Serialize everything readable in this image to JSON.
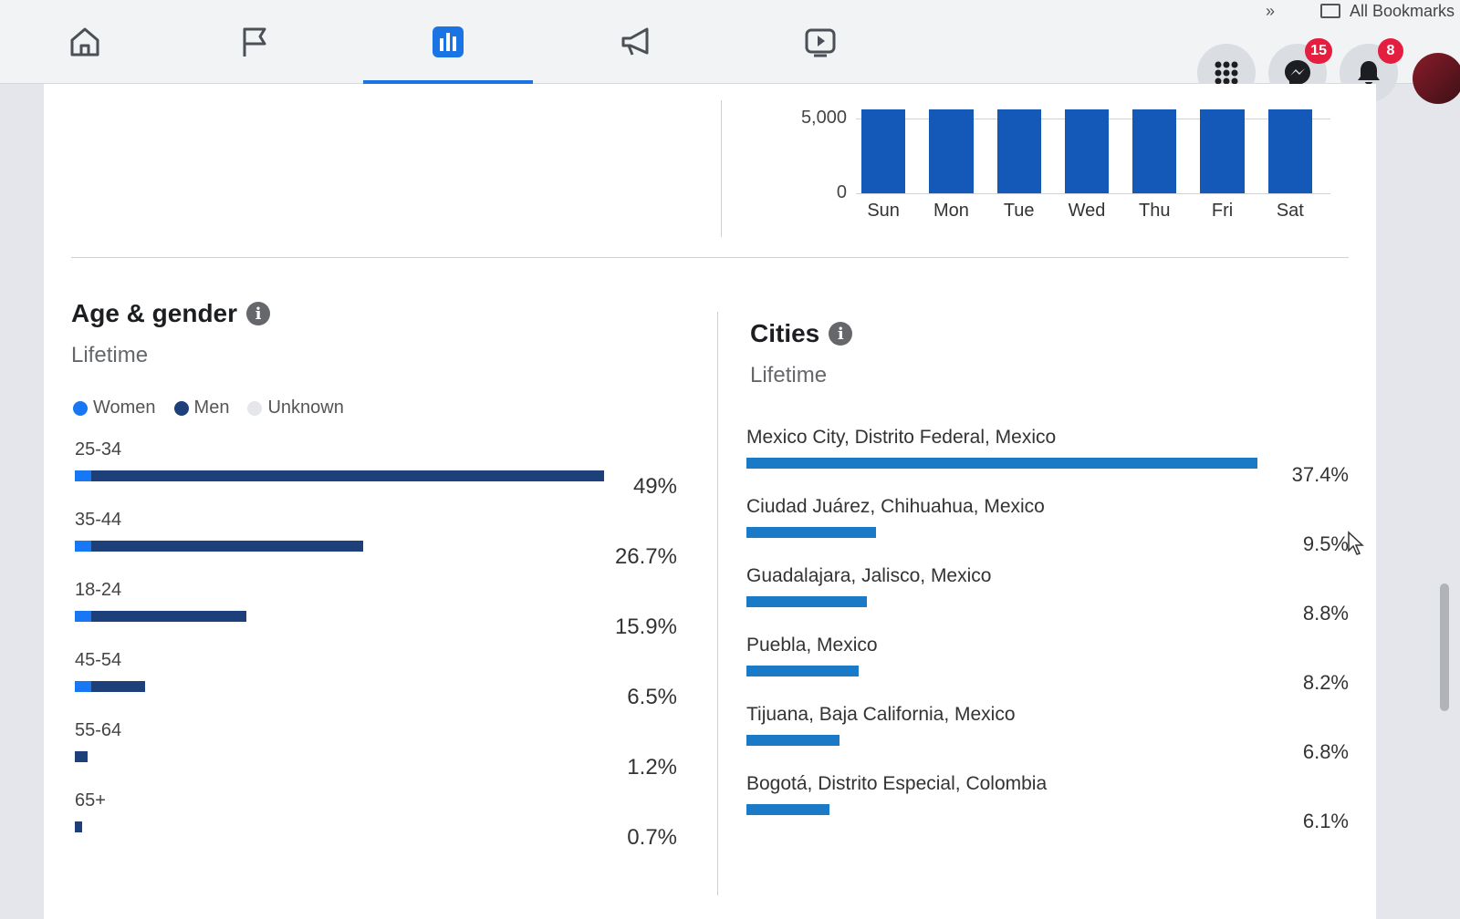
{
  "nav": {
    "tabs": [
      {
        "name": "home",
        "icon": "home-icon",
        "active": false
      },
      {
        "name": "pages",
        "icon": "flag-icon",
        "active": false
      },
      {
        "name": "insights",
        "icon": "bar-chart-icon",
        "active": true
      },
      {
        "name": "ads",
        "icon": "megaphone-icon",
        "active": false
      },
      {
        "name": "watch",
        "icon": "video-icon",
        "active": false
      }
    ],
    "bookmarks_label": "All Bookmarks",
    "bookmarks_chevron": "»",
    "messenger_badge": "15",
    "notifications_badge": "8"
  },
  "weekday_chart": {
    "chart_data": {
      "type": "bar",
      "categories": [
        "Sun",
        "Mon",
        "Tue",
        "Wed",
        "Thu",
        "Fri",
        "Sat"
      ],
      "values": [
        5600,
        5600,
        5600,
        5600,
        5600,
        5600,
        5600
      ],
      "ylim": [
        0,
        5600
      ],
      "yticks": [
        "5,000",
        "0"
      ],
      "grid": true
    }
  },
  "age_gender": {
    "title": "Age & gender",
    "subtitle": "Lifetime",
    "legend": [
      {
        "label": "Women",
        "color": "#1877f2"
      },
      {
        "label": "Men",
        "color": "#1d3f7a"
      },
      {
        "label": "Unknown",
        "color": "#e4e6eb"
      }
    ],
    "chart_data": {
      "type": "bar",
      "orientation": "horizontal",
      "categories": [
        "25-34",
        "35-44",
        "18-24",
        "45-54",
        "55-64",
        "65+"
      ],
      "values": [
        49,
        26.7,
        15.9,
        6.5,
        1.2,
        0.7
      ],
      "labels": [
        "49%",
        "26.7%",
        "15.9%",
        "6.5%",
        "1.2%",
        "0.7%"
      ]
    }
  },
  "cities": {
    "title": "Cities",
    "subtitle": "Lifetime",
    "chart_data": {
      "type": "bar",
      "orientation": "horizontal",
      "categories": [
        "Mexico City, Distrito Federal, Mexico",
        "Ciudad Juárez, Chihuahua, Mexico",
        "Guadalajara, Jalisco, Mexico",
        "Puebla, Mexico",
        "Tijuana, Baja California, Mexico",
        "Bogotá, Distrito Especial, Colombia"
      ],
      "values": [
        37.4,
        9.5,
        8.8,
        8.2,
        6.8,
        6.1
      ],
      "labels": [
        "37.4%",
        "9.5%",
        "8.8%",
        "8.2%",
        "6.8%",
        "6.1%"
      ]
    }
  }
}
